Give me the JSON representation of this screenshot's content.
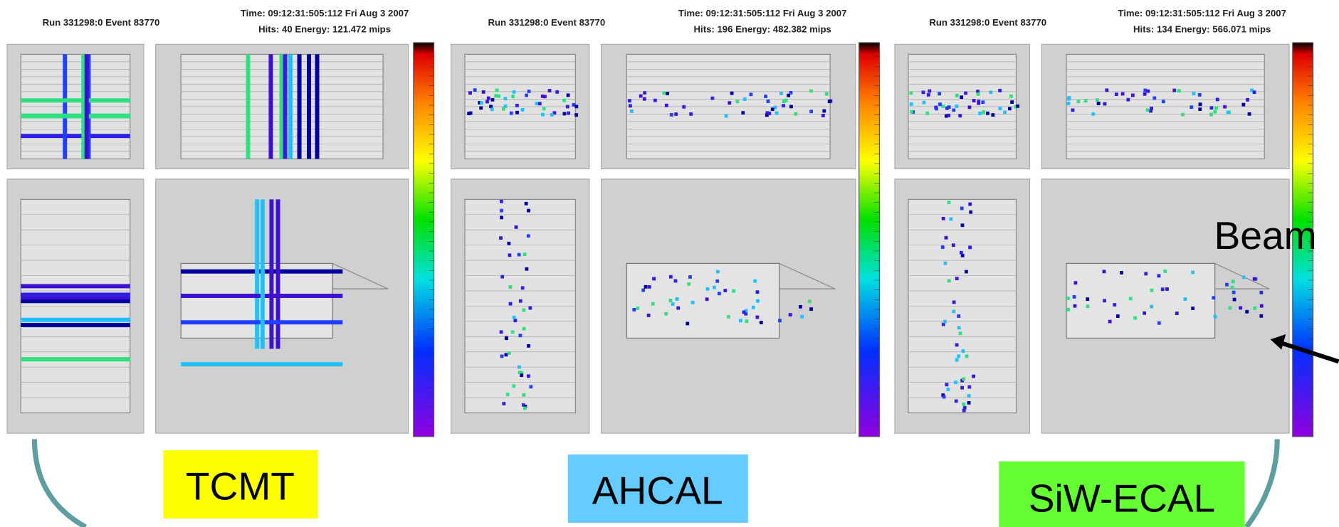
{
  "panels": [
    {
      "run": "Run 331298:0 Event 83770",
      "time": "Time: 09:12:31:505:112 Fri Aug  3 2007",
      "hits": "Hits: 40  Energy: 121.472 mips",
      "label": "TCMT"
    },
    {
      "run": "Run 331298:0 Event 83770",
      "time": "Time: 09:12:31:505:112 Fri Aug  3 2007",
      "hits": "Hits: 196  Energy: 482.382 mips",
      "label": "AHCAL"
    },
    {
      "run": "Run 331298:0 Event 83770",
      "time": "Time: 09:12:31:505:112 Fri Aug  3 2007",
      "hits": "Hits: 134  Energy: 566.071 mips",
      "label": "SiW-ECAL"
    }
  ],
  "annotation": "Beam"
}
